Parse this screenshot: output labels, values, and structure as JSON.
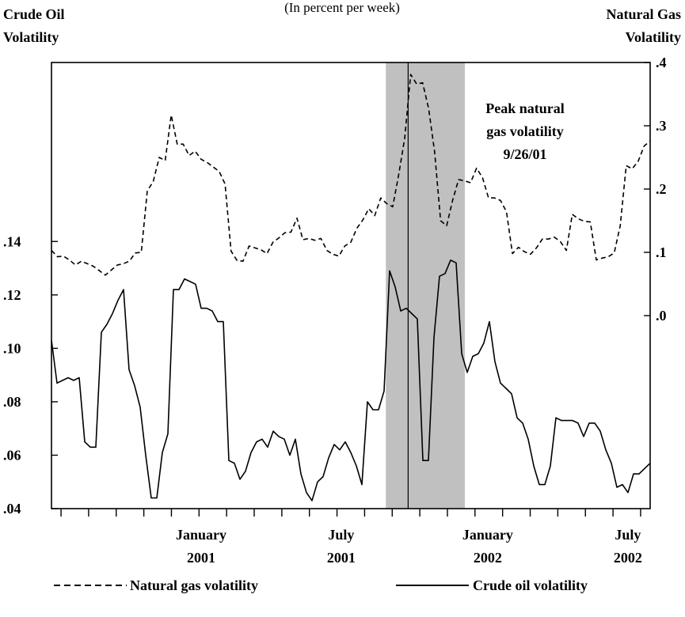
{
  "chart_data": {
    "type": "line",
    "subtitle_partial": "(In percent per week)",
    "left_axis_title": [
      "Crude Oil",
      "Volatility"
    ],
    "right_axis_title": [
      "Natural Gas",
      "Volatility"
    ],
    "left_ticks": [
      {
        "v": 0.04,
        "label": ".04"
      },
      {
        "v": 0.06,
        "label": ".06"
      },
      {
        "v": 0.08,
        "label": ".08"
      },
      {
        "v": 0.1,
        "label": ".10"
      },
      {
        "v": 0.12,
        "label": ".12"
      },
      {
        "v": 0.14,
        "label": ".14"
      }
    ],
    "right_ticks": [
      {
        "v": 0.0,
        "label": ".0"
      },
      {
        "v": 0.1,
        "label": ".1"
      },
      {
        "v": 0.2,
        "label": ".2"
      },
      {
        "v": 0.3,
        "label": ".3"
      },
      {
        "v": 0.4,
        "label": ".4"
      }
    ],
    "ylim_left": [
      0.04,
      0.207
    ],
    "ylim_right": [
      -0.305,
      0.4
    ],
    "x_range_weeks": [
      0,
      94
    ],
    "x_tick_labels": [
      {
        "w": 23.5,
        "line1": "January",
        "line2": "2001"
      },
      {
        "w": 45.5,
        "line1": "July",
        "line2": "2001"
      },
      {
        "w": 68.5,
        "line1": "January",
        "line2": "2002"
      },
      {
        "w": 90.5,
        "line1": "July",
        "line2": "2002"
      }
    ],
    "shaded_period_weeks": [
      52.5,
      64.9
    ],
    "event_line_week": 56,
    "annotation": [
      "Peak natural",
      "gas volatility",
      "9/26/01"
    ],
    "series": [
      {
        "name": "Natural gas volatility",
        "axis": "right",
        "style": "dashed",
        "values": [
          0.103,
          0.093,
          0.094,
          0.088,
          0.08,
          0.086,
          0.082,
          0.078,
          0.071,
          0.064,
          0.072,
          0.08,
          0.082,
          0.086,
          0.099,
          0.1,
          0.197,
          0.212,
          0.25,
          0.245,
          0.317,
          0.271,
          0.271,
          0.253,
          0.26,
          0.247,
          0.242,
          0.235,
          0.228,
          0.208,
          0.102,
          0.087,
          0.086,
          0.11,
          0.107,
          0.104,
          0.098,
          0.116,
          0.123,
          0.131,
          0.132,
          0.154,
          0.12,
          0.122,
          0.119,
          0.122,
          0.103,
          0.097,
          0.094,
          0.11,
          0.116,
          0.138,
          0.151,
          0.169,
          0.158,
          0.186,
          0.177,
          0.172,
          0.223,
          0.28,
          0.381,
          0.366,
          0.368,
          0.327,
          0.259,
          0.15,
          0.142,
          0.182,
          0.215,
          0.213,
          0.21,
          0.233,
          0.218,
          0.186,
          0.186,
          0.182,
          0.164,
          0.098,
          0.108,
          0.101,
          0.097,
          0.107,
          0.121,
          0.121,
          0.124,
          0.117,
          0.103,
          0.16,
          0.153,
          0.149,
          0.148,
          0.088,
          0.091,
          0.093,
          0.099,
          0.142,
          0.237,
          0.232,
          0.244,
          0.268,
          0.276
        ]
      },
      {
        "name": "Crude oil volatility",
        "axis": "left",
        "style": "solid",
        "values": [
          0.103,
          0.087,
          0.088,
          0.089,
          0.088,
          0.089,
          0.065,
          0.063,
          0.063,
          0.106,
          0.109,
          0.113,
          0.118,
          0.122,
          0.092,
          0.086,
          0.078,
          0.06,
          0.044,
          0.044,
          0.061,
          0.068,
          0.122,
          0.122,
          0.126,
          0.125,
          0.124,
          0.115,
          0.115,
          0.114,
          0.11,
          0.11,
          0.058,
          0.057,
          0.051,
          0.054,
          0.061,
          0.065,
          0.066,
          0.063,
          0.069,
          0.067,
          0.066,
          0.06,
          0.066,
          0.053,
          0.046,
          0.043,
          0.05,
          0.052,
          0.059,
          0.064,
          0.062,
          0.065,
          0.061,
          0.056,
          0.049,
          0.08,
          0.077,
          0.077,
          0.084,
          0.129,
          0.123,
          0.114,
          0.115,
          0.113,
          0.111,
          0.058,
          0.058,
          0.104,
          0.127,
          0.128,
          0.133,
          0.132,
          0.098,
          0.091,
          0.097,
          0.098,
          0.102,
          0.11,
          0.095,
          0.087,
          0.085,
          0.083,
          0.074,
          0.072,
          0.066,
          0.056,
          0.049,
          0.049,
          0.056,
          0.074,
          0.073,
          0.073,
          0.073,
          0.072,
          0.067,
          0.072,
          0.072,
          0.069,
          0.062,
          0.057,
          0.048,
          0.049,
          0.046,
          0.053,
          0.053,
          0.055,
          0.057
        ]
      }
    ],
    "legend": {
      "dashed_label": "Natural gas volatility",
      "solid_label": "Crude oil volatility",
      "placement": "bottom"
    }
  }
}
